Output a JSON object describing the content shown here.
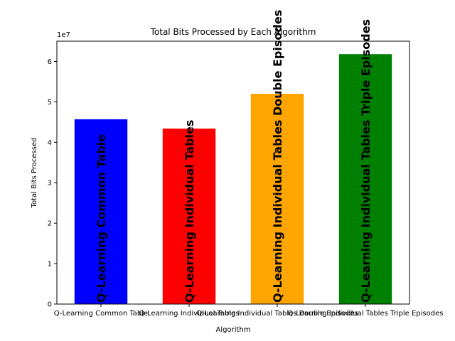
{
  "chart_data": {
    "type": "bar",
    "title": "Total Bits Processed by Each Algorithm",
    "xlabel": "Algorithm",
    "ylabel": "Total Bits Processed",
    "y_scale_label": "1e7",
    "ylim": [
      0,
      6.5
    ],
    "yticks": [
      0,
      1,
      2,
      3,
      4,
      5,
      6
    ],
    "grid": false,
    "categories": [
      "Q-Learning Common Table",
      "Q-Learning Individual Tables",
      "Q-Learning Individual Tables Double Episodes",
      "Q-Learning Individual Tables Triple Episodes"
    ],
    "values": [
      4.57,
      4.34,
      5.2,
      6.18
    ],
    "colors": [
      "#0000ff",
      "#ff0000",
      "#ffa500",
      "#008000"
    ],
    "bar_labels": [
      "Q-Learning Common Table",
      "Q-Learning Individual Tables",
      "Q-Learning Individual Tables Double Episodes",
      "Q-Learning Individual Tables Triple Episodes"
    ]
  }
}
